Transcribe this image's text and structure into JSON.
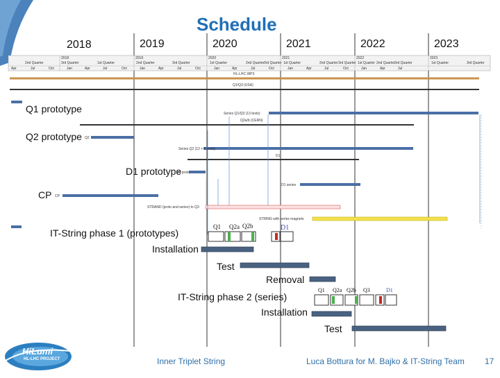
{
  "title": "Schedule",
  "years": [
    "2018",
    "2019",
    "2020",
    "2021",
    "2022",
    "2023"
  ],
  "gantt_header": {
    "years": [
      "2018",
      "2019",
      "2020",
      "2021",
      "2022",
      "2023"
    ],
    "quarters": [
      "2nd Quarter",
      "3rd Quarter",
      "1st Quarter",
      "2nd Quarter",
      "3rd Quarter",
      "1st Quarter",
      "2nd Quarter",
      "3rd Quarter",
      "1st Quarter",
      "2nd Quarter",
      "3rd Quarter",
      "1st Quarter",
      "2nd Quarter",
      "3rd Quarter",
      "1st Quarter",
      "3rd Quarter"
    ],
    "months": [
      "Apr",
      "Jul",
      "Oct",
      "Jan",
      "Apr",
      "Jul",
      "Oct",
      "Jan",
      "Apr",
      "Jul",
      "Oct",
      "Jan",
      "Apr",
      "Jul",
      "Oct",
      "Jan",
      "Apr",
      "Jul",
      "Oct",
      "Jan",
      "Apr",
      "Jul"
    ]
  },
  "gantt_rows": {
    "hl_lhc": "HL-LHC WP3",
    "q1q3": "Q1/Q3 (USA)",
    "series_q1q3": "Series Q1/Q3 (13 tests)",
    "q2ab": "Q2a/b (CERN)",
    "series_q2": "Series Q2 (12 + 5 tests)",
    "d1": "D1",
    "d1_series": "D1 series",
    "strand": "STRAND (proto and series) to Q3",
    "string_series": "STRING with series magnets",
    "q2_tag": "Q2",
    "cp_tag": "CP",
    "d1_tag": "D1 proto"
  },
  "labels": {
    "q1_prototype": "Q1 prototype",
    "q2_prototype": "Q2 prototype",
    "d1_prototype": "D1 prototype",
    "cp": "CP",
    "phase1": "IT-String phase 1 (prototypes)",
    "installation1": "Installation",
    "test1": "Test",
    "removal": "Removal",
    "phase2": "IT-String phase 2 (series)",
    "installation2": "Installation",
    "test2": "Test"
  },
  "magnet_labels1": [
    "Q1",
    "Q2a",
    "Q2b",
    "D1"
  ],
  "magnet_labels2": [
    "Q1",
    "Q2a",
    "Q2b",
    "Q3",
    "D1"
  ],
  "footer": {
    "left": "Inner Triplet String",
    "right": "Luca Bottura for M. Bajko & IT-String Team",
    "page": "17"
  },
  "logo": {
    "name": "HiLumi",
    "sub": "HL-LHC PROJECT"
  },
  "colors": {
    "title": "#1f6fb6",
    "bar": "#4a6fa5",
    "accent": "#2e6fa8",
    "strand": "#e07070",
    "string": "#f2e24a",
    "hl_bar": "#c8924a"
  }
}
